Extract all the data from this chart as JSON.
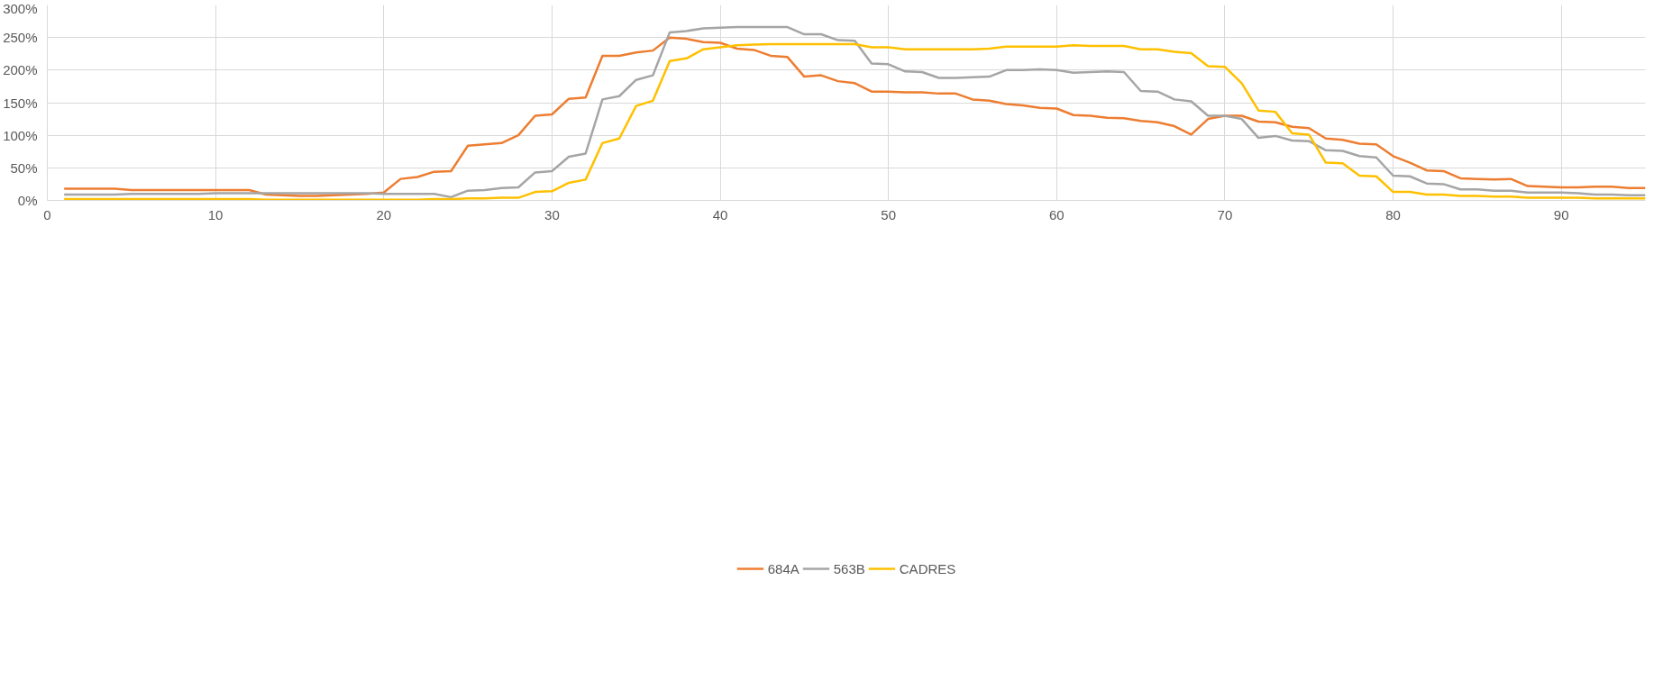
{
  "chart_data": {
    "type": "line",
    "x": [
      1,
      2,
      3,
      4,
      5,
      6,
      7,
      8,
      9,
      10,
      11,
      12,
      13,
      14,
      15,
      16,
      17,
      18,
      19,
      20,
      21,
      22,
      23,
      24,
      25,
      26,
      27,
      28,
      29,
      30,
      31,
      32,
      33,
      34,
      35,
      36,
      37,
      38,
      39,
      40,
      41,
      42,
      43,
      44,
      45,
      46,
      47,
      48,
      49,
      50,
      51,
      52,
      53,
      54,
      55,
      56,
      57,
      58,
      59,
      60,
      61,
      62,
      63,
      64,
      65,
      66,
      67,
      68,
      69,
      70,
      71,
      72,
      73,
      74,
      75,
      76,
      77,
      78,
      79,
      80,
      81,
      82,
      83,
      84,
      85,
      86,
      87,
      88,
      89,
      90,
      91,
      92,
      93,
      94,
      95
    ],
    "series": [
      {
        "name": "684A",
        "color": "#ed7d31",
        "values": [
          18,
          18,
          18,
          18,
          16,
          16,
          16,
          16,
          16,
          16,
          16,
          16,
          9,
          8,
          7,
          7,
          8,
          9,
          10,
          12,
          33,
          36,
          44,
          45,
          84,
          86,
          88,
          100,
          130,
          132,
          156,
          158,
          222,
          222,
          227,
          230,
          250,
          248,
          243,
          242,
          233,
          231,
          222,
          220,
          190,
          192,
          183,
          180,
          167,
          167,
          166,
          166,
          164,
          164,
          155,
          153,
          148,
          146,
          142,
          141,
          131,
          130,
          127,
          126,
          122,
          120,
          114,
          101,
          125,
          130,
          130,
          121,
          120,
          113,
          111,
          95,
          93,
          87,
          86,
          68,
          58,
          46,
          45,
          34,
          33,
          32,
          33,
          22,
          21,
          20,
          20,
          21,
          21,
          19,
          19
        ]
      },
      {
        "name": "563B",
        "color": "#a5a5a5",
        "values": [
          9,
          9,
          9,
          9,
          10,
          10,
          10,
          10,
          10,
          11,
          11,
          11,
          11,
          11,
          11,
          11,
          11,
          11,
          11,
          10,
          10,
          10,
          10,
          5,
          15,
          16,
          19,
          20,
          43,
          45,
          67,
          72,
          155,
          160,
          185,
          192,
          258,
          260,
          264,
          265,
          266,
          266,
          266,
          266,
          255,
          255,
          246,
          245,
          210,
          209,
          198,
          197,
          188,
          188,
          189,
          190,
          200,
          200,
          201,
          200,
          196,
          197,
          198,
          197,
          168,
          167,
          155,
          152,
          130,
          130,
          125,
          96,
          99,
          92,
          91,
          77,
          76,
          68,
          66,
          38,
          37,
          26,
          25,
          17,
          17,
          15,
          15,
          12,
          12,
          12,
          11,
          9,
          9,
          8,
          8
        ]
      },
      {
        "name": "CADRES",
        "color": "#ffc000",
        "values": [
          2,
          2,
          2,
          2,
          2,
          2,
          2,
          2,
          2,
          2,
          2,
          2,
          1,
          1,
          1,
          1,
          1,
          1,
          1,
          1,
          1,
          1,
          2,
          2,
          3,
          3,
          4,
          4,
          13,
          14,
          27,
          32,
          88,
          95,
          145,
          153,
          214,
          218,
          232,
          235,
          238,
          239,
          240,
          240,
          240,
          240,
          240,
          240,
          235,
          235,
          232,
          232,
          232,
          232,
          232,
          233,
          236,
          236,
          236,
          236,
          238,
          237,
          237,
          237,
          232,
          232,
          228,
          226,
          206,
          205,
          180,
          138,
          136,
          103,
          101,
          58,
          57,
          38,
          37,
          13,
          13,
          9,
          9,
          7,
          7,
          6,
          6,
          4,
          4,
          4,
          4,
          3,
          3,
          3,
          3
        ]
      }
    ],
    "xlim": [
      0,
      95
    ],
    "xticks": [
      0,
      10,
      20,
      30,
      40,
      50,
      60,
      70,
      80,
      90
    ],
    "ylim": [
      0,
      300
    ],
    "yticks": [
      {
        "value": 0,
        "label": "0%"
      },
      {
        "value": 50,
        "label": "50%"
      },
      {
        "value": 100,
        "label": "100%"
      },
      {
        "value": 150,
        "label": "150%"
      },
      {
        "value": 200,
        "label": "200%"
      },
      {
        "value": 250,
        "label": "250%"
      },
      {
        "value": 300,
        "label": "300%"
      }
    ],
    "grid": true,
    "legend": "bottom",
    "marker": "none",
    "line_style": "solid"
  }
}
